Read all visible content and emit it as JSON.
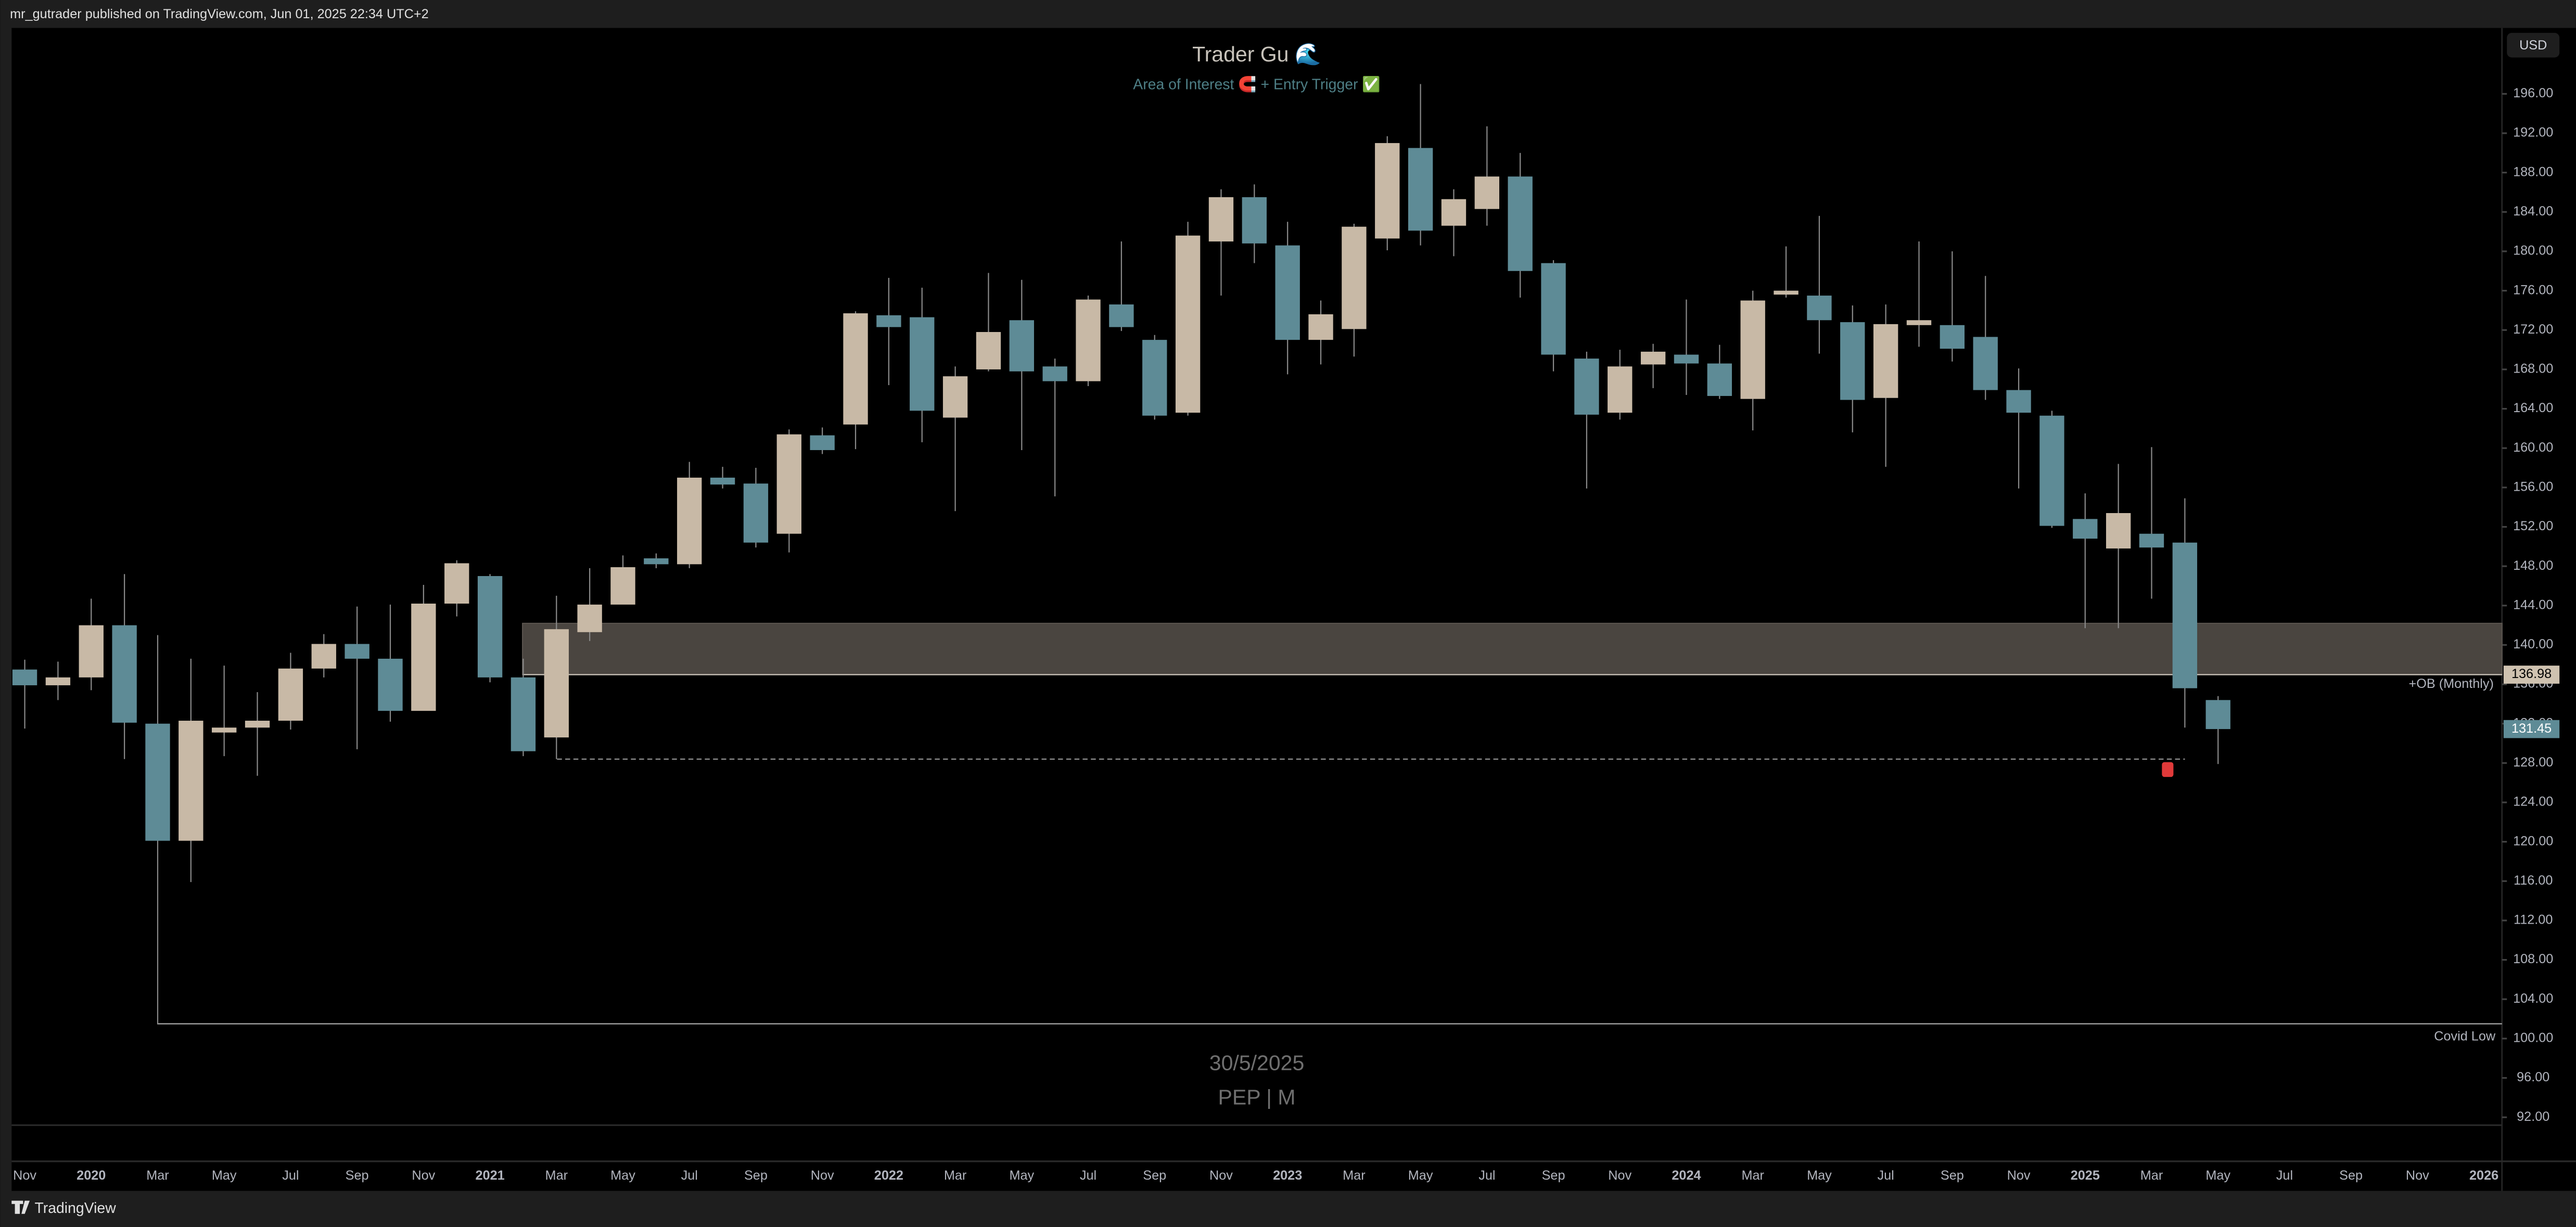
{
  "header": "mr_gutrader published on TradingView.com, Jun 01, 2025 22:34 UTC+2",
  "currency": "USD",
  "footer": "TradingView",
  "chart_data": {
    "type": "candlestick",
    "title": "Trader Gu 🌊",
    "subtitle": "Area of Interest 🧲 + Entry Trigger ✅",
    "date_label": "30/5/2025",
    "symbol_label": "PEP | M",
    "up_color": "#c8b9a6",
    "down_color": "#5e8b96",
    "categories": [
      "Nov",
      null,
      "2020",
      null,
      "Mar",
      null,
      "May",
      null,
      "Jul",
      null,
      "Sep",
      null,
      "Nov",
      null,
      "2021",
      null,
      "Mar",
      null,
      "May",
      null,
      "Jul",
      null,
      "Sep",
      null,
      "Nov",
      null,
      "2022",
      null,
      "Mar",
      null,
      "May",
      null,
      "Jul",
      null,
      "Sep",
      null,
      "Nov",
      null,
      "2023",
      null,
      "Mar",
      null,
      "May",
      null,
      "Jul",
      null,
      "Sep",
      null,
      "Nov",
      null,
      "2024",
      null,
      "Mar",
      null,
      "May",
      null,
      "Jul",
      null,
      "Sep",
      null,
      "Nov",
      null,
      "2025",
      null,
      "Mar",
      null,
      "May",
      null,
      "Jul",
      null,
      "Sep",
      null,
      "Nov",
      null,
      "2026"
    ],
    "open": [
      137.5,
      135.9,
      136.7,
      142.0,
      132.0,
      120.1,
      131.1,
      131.6,
      132.3,
      137.6,
      140.1,
      138.6,
      133.3,
      144.2,
      147.0,
      136.7,
      130.6,
      141.3,
      144.1,
      148.8,
      148.2,
      157.0,
      156.4,
      151.3,
      161.3,
      162.4,
      173.5,
      173.3,
      163.1,
      168.0,
      173.0,
      168.3,
      166.8,
      174.6,
      171.0,
      163.6,
      181.0,
      185.5,
      180.6,
      171.0,
      172.1,
      181.3,
      190.5,
      182.6,
      184.3,
      187.6,
      178.8,
      169.1,
      163.6,
      168.5,
      169.5,
      168.6,
      165.0,
      175.6,
      175.5,
      172.8,
      165.1,
      172.5,
      172.5,
      171.3,
      165.9,
      163.3,
      152.8,
      149.8,
      151.3,
      150.4,
      134.4,
      null,
      null,
      null,
      null,
      null,
      null,
      null,
      null
    ],
    "high": [
      138.5,
      138.3,
      144.7,
      147.2,
      141.0,
      138.6,
      137.9,
      135.2,
      139.2,
      141.1,
      143.9,
      144.1,
      146.1,
      148.6,
      147.2,
      138.6,
      145.0,
      147.8,
      149.1,
      149.3,
      158.6,
      158.1,
      158.0,
      161.9,
      162.1,
      173.9,
      177.3,
      176.3,
      168.3,
      177.8,
      177.1,
      169.1,
      175.5,
      181.0,
      171.5,
      183.0,
      186.3,
      186.8,
      183.0,
      175.0,
      182.8,
      191.7,
      197.0,
      186.3,
      192.7,
      190.0,
      179.1,
      169.8,
      170.0,
      170.6,
      175.1,
      170.5,
      176.0,
      180.5,
      183.6,
      174.5,
      174.6,
      181.0,
      180.0,
      177.5,
      168.1,
      163.8,
      155.4,
      158.4,
      160.1,
      154.9,
      134.8,
      null,
      null,
      null,
      null,
      null,
      null,
      null,
      null
    ],
    "low": [
      131.5,
      134.4,
      135.4,
      128.4,
      101.5,
      115.9,
      128.7,
      126.7,
      131.4,
      136.7,
      129.4,
      132.2,
      134.1,
      142.9,
      136.2,
      128.7,
      128.4,
      140.4,
      144.2,
      147.8,
      147.8,
      155.9,
      149.9,
      149.4,
      159.4,
      159.9,
      166.4,
      160.6,
      153.6,
      167.8,
      159.8,
      155.1,
      166.3,
      171.9,
      162.9,
      163.3,
      175.5,
      178.8,
      167.5,
      168.5,
      169.3,
      180.1,
      180.6,
      179.5,
      182.6,
      175.3,
      167.8,
      155.9,
      162.9,
      166.1,
      165.4,
      165.0,
      161.8,
      175.3,
      169.6,
      161.6,
      158.1,
      170.3,
      168.8,
      164.9,
      155.9,
      151.9,
      141.7,
      141.7,
      144.7,
      131.6,
      127.9,
      null,
      null,
      null,
      null,
      null,
      null,
      null,
      null
    ],
    "close": [
      135.9,
      136.7,
      142.0,
      132.1,
      120.1,
      132.3,
      131.6,
      132.3,
      137.6,
      140.1,
      138.6,
      133.3,
      144.2,
      148.3,
      136.7,
      129.2,
      141.6,
      144.1,
      147.9,
      148.2,
      157.0,
      156.3,
      150.4,
      161.4,
      159.8,
      173.7,
      172.3,
      163.8,
      167.3,
      171.8,
      167.8,
      166.8,
      175.1,
      172.3,
      163.3,
      181.6,
      185.5,
      180.8,
      171.0,
      173.6,
      182.5,
      191.0,
      182.1,
      185.3,
      187.6,
      178.0,
      169.5,
      163.4,
      168.3,
      169.8,
      168.6,
      165.3,
      175.0,
      176.0,
      173.0,
      164.9,
      172.6,
      173.0,
      170.1,
      165.9,
      163.6,
      152.1,
      150.8,
      153.4,
      149.9,
      135.6,
      131.45,
      null,
      null,
      null,
      null,
      null,
      null,
      null,
      null
    ],
    "zone": {
      "low": 136.98,
      "high": 142.2,
      "label": "+OB (Monthly)"
    },
    "dashed_level": 128.4,
    "covid_low": {
      "value": 101.5,
      "label": "Covid Low"
    },
    "ylim": [
      91.2,
      202.7
    ],
    "yticks": [
      {
        "value": 92,
        "label": "92.00"
      },
      {
        "value": 96,
        "label": "96.00"
      },
      {
        "value": 100,
        "label": "100.00"
      },
      {
        "value": 104,
        "label": "104.00"
      },
      {
        "value": 108,
        "label": "108.00"
      },
      {
        "value": 112,
        "label": "112.00"
      },
      {
        "value": 116,
        "label": "116.00"
      },
      {
        "value": 120,
        "label": "120.00"
      },
      {
        "value": 124,
        "label": "124.00"
      },
      {
        "value": 128,
        "label": "128.00"
      },
      {
        "value": 132,
        "label": "132.00"
      },
      {
        "value": 136,
        "label": "136.00"
      },
      {
        "value": 140,
        "label": "140.00"
      },
      {
        "value": 144,
        "label": "144.00"
      },
      {
        "value": 148,
        "label": "148.00"
      },
      {
        "value": 152,
        "label": "152.00"
      },
      {
        "value": 156,
        "label": "156.00"
      },
      {
        "value": 160,
        "label": "160.00"
      },
      {
        "value": 164,
        "label": "164.00"
      },
      {
        "value": 168,
        "label": "168.00"
      },
      {
        "value": 172,
        "label": "172.00"
      },
      {
        "value": 176,
        "label": "176.00"
      },
      {
        "value": 180,
        "label": "180.00"
      },
      {
        "value": 184,
        "label": "184.00"
      },
      {
        "value": 188,
        "label": "188.00"
      },
      {
        "value": 192,
        "label": "192.00"
      },
      {
        "value": 196,
        "label": "196.00"
      }
    ]
  }
}
